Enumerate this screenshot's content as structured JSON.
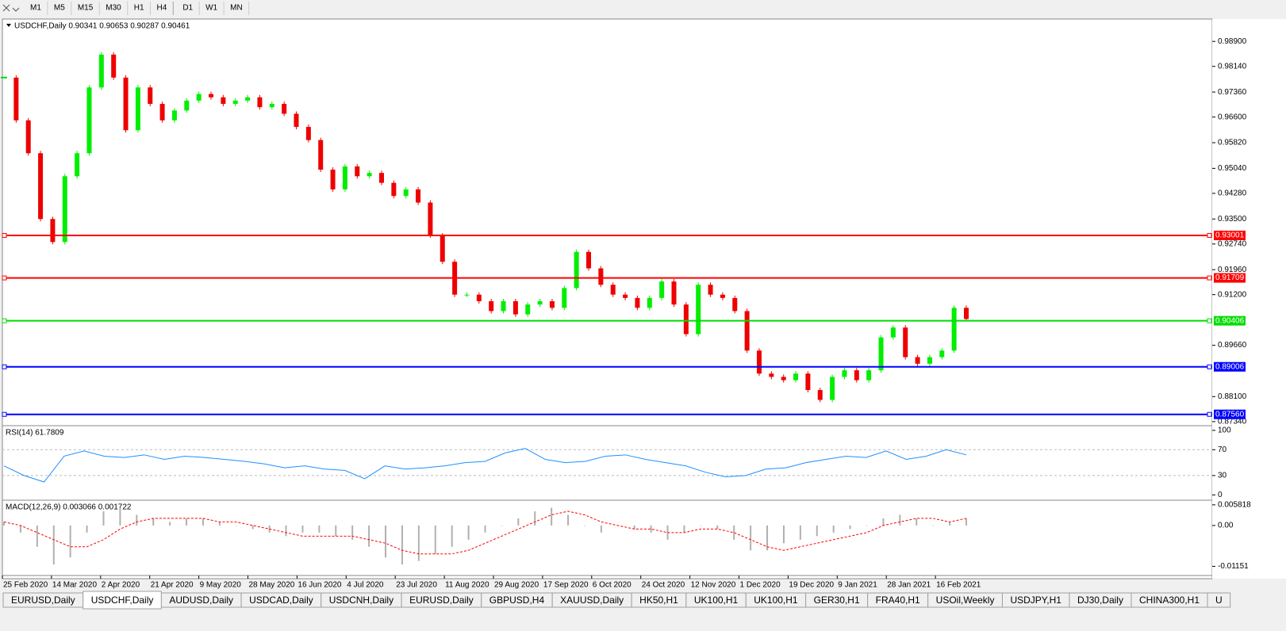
{
  "toolbar": {
    "timeframes": [
      "M1",
      "M5",
      "M15",
      "M30",
      "H1",
      "H4",
      "D1",
      "W1",
      "MN"
    ]
  },
  "chart_data": {
    "type": "candlestick",
    "header": "USDCHF,Daily  0.90341 0.90653 0.90287 0.90461",
    "closes": [
      0.978,
      0.965,
      0.955,
      0.935,
      0.928,
      0.948,
      0.955,
      0.975,
      0.985,
      0.978,
      0.962,
      0.975,
      0.97,
      0.965,
      0.968,
      0.971,
      0.973,
      0.972,
      0.97,
      0.971,
      0.972,
      0.969,
      0.97,
      0.967,
      0.963,
      0.959,
      0.95,
      0.944,
      0.951,
      0.948,
      0.949,
      0.946,
      0.942,
      0.944,
      0.94,
      0.93,
      0.922,
      0.912,
      0.912,
      0.91,
      0.907,
      0.91,
      0.906,
      0.909,
      0.91,
      0.908,
      0.914,
      0.925,
      0.92,
      0.915,
      0.912,
      0.911,
      0.908,
      0.911,
      0.916,
      0.909,
      0.9,
      0.915,
      0.912,
      0.911,
      0.907,
      0.895,
      0.888,
      0.887,
      0.886,
      0.888,
      0.883,
      0.88,
      0.887,
      0.889,
      0.886,
      0.889,
      0.899,
      0.902,
      0.893,
      0.891,
      0.893,
      0.895,
      0.908,
      0.9046
    ],
    "ylim": [
      0.8724,
      0.9958
    ],
    "yticks": [
      {
        "value": 0.989,
        "label": "0.98900"
      },
      {
        "value": 0.9814,
        "label": "0.98140"
      },
      {
        "value": 0.9736,
        "label": "0.97360"
      },
      {
        "value": 0.966,
        "label": "0.96600"
      },
      {
        "value": 0.9582,
        "label": "0.95820"
      },
      {
        "value": 0.9504,
        "label": "0.95040"
      },
      {
        "value": 0.9428,
        "label": "0.94280"
      },
      {
        "value": 0.935,
        "label": "0.93500"
      },
      {
        "value": 0.9274,
        "label": "0.92740"
      },
      {
        "value": 0.9196,
        "label": "0.91960"
      },
      {
        "value": 0.912,
        "label": "0.91200"
      },
      {
        "value": 0.8966,
        "label": "0.89660"
      },
      {
        "value": 0.881,
        "label": "0.88100"
      },
      {
        "value": 0.8734,
        "label": "0.87340"
      }
    ],
    "levels": [
      {
        "value": 0.93001,
        "label": "0.93001",
        "color": "#ff0000"
      },
      {
        "value": 0.91709,
        "label": "0.91709",
        "color": "#ff0000"
      },
      {
        "value": 0.90406,
        "label": "0.90406",
        "color": "#00dd00"
      },
      {
        "value": 0.89006,
        "label": "0.89006",
        "color": "#0000ff"
      },
      {
        "value": 0.8756,
        "label": "0.87560",
        "color": "#0000ff"
      }
    ],
    "dates": [
      "25 Feb 2020",
      "14 Mar 2020",
      "2 Apr 2020",
      "21 Apr 2020",
      "9 May 2020",
      "28 May 2020",
      "16 Jun 2020",
      "4 Jul 2020",
      "23 Jul 2020",
      "11 Aug 2020",
      "29 Aug 2020",
      "17 Sep 2020",
      "6 Oct 2020",
      "24 Oct 2020",
      "12 Nov 2020",
      "1 Dec 2020",
      "19 Dec 2020",
      "9 Jan 2021",
      "28 Jan 2021",
      "16 Feb 2021"
    ],
    "rsi": {
      "title": "RSI(14) 61.7809",
      "values": [
        45,
        30,
        20,
        60,
        68,
        60,
        58,
        62,
        55,
        60,
        58,
        55,
        52,
        48,
        42,
        45,
        40,
        38,
        25,
        45,
        40,
        42,
        45,
        50,
        52,
        65,
        72,
        55,
        50,
        52,
        60,
        62,
        55,
        50,
        45,
        35,
        28,
        30,
        40,
        42,
        50,
        55,
        60,
        58,
        68,
        55,
        60,
        70,
        62
      ],
      "ylim": [
        -7,
        106
      ],
      "yticks": [
        100,
        70,
        30,
        0
      ]
    },
    "macd": {
      "title": "MACD(12,26,9) 0.003066 0.001722",
      "histogram": [
        0.001,
        -0.002,
        -0.006,
        -0.011,
        -0.009,
        -0.002,
        0.004,
        0.005,
        0.003,
        0.002,
        0.001,
        0.002,
        0.002,
        0.001,
        0.0,
        -0.001,
        -0.002,
        -0.003,
        -0.002,
        -0.002,
        -0.003,
        -0.004,
        -0.006,
        -0.009,
        -0.011,
        -0.01,
        -0.008,
        -0.006,
        -0.004,
        -0.002,
        0.0,
        0.002,
        0.004,
        0.005,
        0.003,
        0.0,
        -0.002,
        0.0,
        -0.001,
        -0.002,
        -0.004,
        -0.002,
        0.0,
        -0.001,
        -0.004,
        -0.007,
        -0.007,
        -0.005,
        -0.004,
        -0.003,
        -0.002,
        -0.001,
        0.0,
        0.002,
        0.003,
        0.002,
        0.0,
        0.001,
        0.002
      ],
      "signal": [
        0.001,
        0.0,
        -0.002,
        -0.004,
        -0.006,
        -0.006,
        -0.004,
        -0.001,
        0.001,
        0.002,
        0.002,
        0.002,
        0.002,
        0.001,
        0.001,
        0.0,
        -0.001,
        -0.002,
        -0.003,
        -0.003,
        -0.003,
        -0.003,
        -0.004,
        -0.005,
        -0.007,
        -0.008,
        -0.008,
        -0.008,
        -0.007,
        -0.005,
        -0.003,
        -0.001,
        0.001,
        0.003,
        0.004,
        0.003,
        0.001,
        0.0,
        -0.001,
        -0.001,
        -0.002,
        -0.002,
        -0.001,
        -0.001,
        -0.002,
        -0.004,
        -0.006,
        -0.007,
        -0.006,
        -0.005,
        -0.004,
        -0.003,
        -0.002,
        0.0,
        0.001,
        0.002,
        0.002,
        0.001,
        0.002
      ],
      "ylim": [
        -0.0141,
        0.0069
      ],
      "yticks": [
        0.005818,
        {
          "value": 0,
          "label": "0.00"
        },
        -0.01151
      ]
    }
  },
  "tabs": [
    "EURUSD,Daily",
    "USDCHF,Daily",
    "AUDUSD,Daily",
    "USDCAD,Daily",
    "USDCNH,Daily",
    "EURUSD,Daily",
    "GBPUSD,H4",
    "XAUUSD,Daily",
    "HK50,H1",
    "UK100,H1",
    "UK100,H1",
    "GER30,H1",
    "FRA40,H1",
    "USOil,Weekly",
    "USDJPY,H1",
    "DJ30,Daily",
    "CHINA300,H1",
    "U"
  ],
  "active_tab": 1
}
